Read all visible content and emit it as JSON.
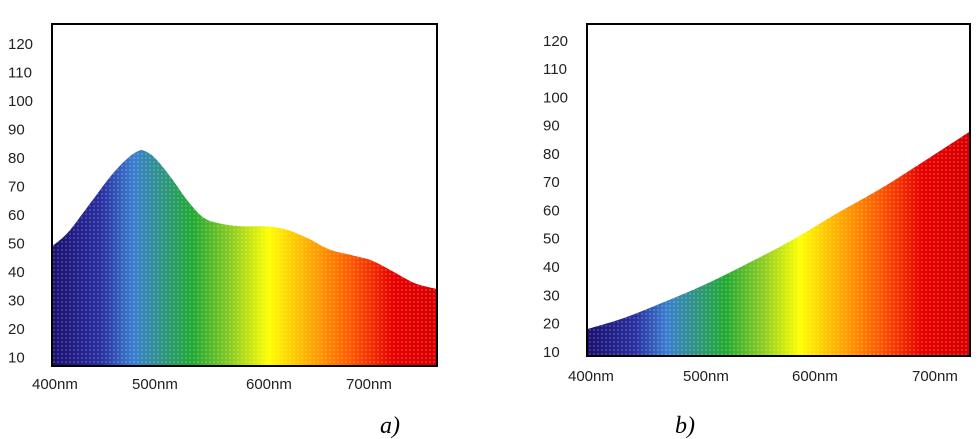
{
  "captions": [
    "a)",
    "b)"
  ],
  "spectrum_colors": [
    "#1a1070",
    "#2a2fa0",
    "#3a7fd0",
    "#22aa33",
    "#8ccc22",
    "#ffff00",
    "#ffb000",
    "#ff5a00",
    "#e80000",
    "#d80000"
  ],
  "chart_data": [
    {
      "type": "area",
      "title": "",
      "xlabel": "",
      "ylabel": "",
      "x_ticks": [
        "400nm",
        "500nm",
        "600nm",
        "700nm"
      ],
      "y_ticks": [
        "10",
        "20",
        "30",
        "40",
        "50",
        "60",
        "70",
        "80",
        "90",
        "100",
        "110",
        "120"
      ],
      "xlim": [
        385,
        740
      ],
      "ylim": [
        7,
        127
      ],
      "grid": false,
      "x": [
        385,
        400,
        420,
        440,
        455,
        465,
        470,
        480,
        495,
        510,
        525,
        540,
        560,
        580,
        600,
        620,
        640,
        660,
        680,
        700,
        720,
        740
      ],
      "y": [
        49,
        54,
        64,
        74,
        80,
        82.5,
        82.5,
        80,
        73,
        65,
        59,
        57,
        56,
        56,
        55,
        52,
        48,
        46,
        44,
        40,
        36,
        34
      ]
    },
    {
      "type": "area",
      "title": "",
      "xlabel": "",
      "ylabel": "",
      "x_ticks": [
        "400nm",
        "500nm",
        "600nm",
        "700nm"
      ],
      "y_ticks": [
        "10",
        "20",
        "30",
        "40",
        "50",
        "60",
        "70",
        "80",
        "90",
        "100",
        "110",
        "120"
      ],
      "xlim": [
        385,
        745
      ],
      "ylim": [
        8.5,
        126
      ],
      "grid": false,
      "x": [
        385,
        420,
        460,
        500,
        540,
        580,
        620,
        660,
        700,
        745
      ],
      "y": [
        18,
        22,
        28,
        34.5,
        42,
        50,
        59,
        67.5,
        77,
        88
      ]
    }
  ]
}
